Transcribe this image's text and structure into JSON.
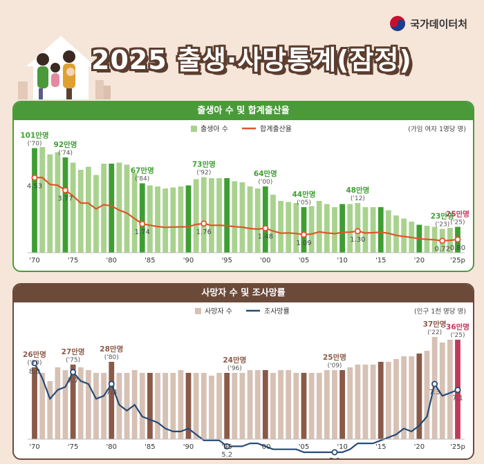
{
  "header": {
    "agency_name": "국가데이터처",
    "title": "2025 출생·사망통계(잠정)"
  },
  "colors": {
    "birth_bar_light": "#a9d28e",
    "birth_bar_dark": "#3f9e33",
    "birth_rate_line": "#e0542a",
    "death_bar_light": "#d6c1b4",
    "death_bar_dark": "#8a5a48",
    "death_bar_highlight": "#c0395a",
    "death_rate_line": "#244a78"
  },
  "chart_data": [
    {
      "type": "bar",
      "title": "출생아 수 및 합계출산율",
      "legend": [
        "출생아 수",
        "합계출산율"
      ],
      "unit_note": "(가임 여자 1명당 명)",
      "x_tick_labels": [
        "'70",
        "'75",
        "'80",
        "'85",
        "'90",
        "'95",
        "'00",
        "'05",
        "'10",
        "'15",
        "'20",
        "'25p"
      ],
      "years": [
        1970,
        1971,
        1972,
        1973,
        1974,
        1975,
        1976,
        1977,
        1978,
        1979,
        1980,
        1981,
        1982,
        1983,
        1984,
        1985,
        1986,
        1987,
        1988,
        1989,
        1990,
        1991,
        1992,
        1993,
        1994,
        1995,
        1996,
        1997,
        1998,
        1999,
        2000,
        2001,
        2002,
        2003,
        2004,
        2005,
        2006,
        2007,
        2008,
        2009,
        2010,
        2011,
        2012,
        2013,
        2014,
        2015,
        2016,
        2017,
        2018,
        2019,
        2020,
        2021,
        2022,
        2023,
        2024,
        2025
      ],
      "births_man": [
        101,
        102,
        95,
        97,
        92,
        87,
        80,
        83,
        75,
        86,
        86,
        87,
        85,
        77,
        67,
        65,
        64,
        62,
        63,
        64,
        65,
        71,
        73,
        72,
        72,
        72,
        69,
        68,
        64,
        62,
        64,
        56,
        50,
        49,
        48,
        44,
        45,
        50,
        47,
        44,
        47,
        47,
        48,
        44,
        44,
        44,
        41,
        36,
        33,
        30,
        27,
        26,
        25,
        23,
        24,
        25
      ],
      "highlight_years": [
        1970,
        1974,
        1980,
        1984,
        1990,
        1995,
        2000,
        2005,
        2010,
        2015,
        2020,
        2025
      ],
      "tfr": [
        4.53,
        4.54,
        4.12,
        4.07,
        3.77,
        3.43,
        3.0,
        2.99,
        2.64,
        2.9,
        2.82,
        2.57,
        2.39,
        2.06,
        1.74,
        1.66,
        1.58,
        1.53,
        1.55,
        1.56,
        1.57,
        1.71,
        1.76,
        1.65,
        1.66,
        1.63,
        1.57,
        1.54,
        1.46,
        1.42,
        1.48,
        1.31,
        1.18,
        1.19,
        1.16,
        1.09,
        1.13,
        1.26,
        1.19,
        1.15,
        1.23,
        1.24,
        1.3,
        1.19,
        1.21,
        1.24,
        1.17,
        1.05,
        0.98,
        0.92,
        0.84,
        0.81,
        0.78,
        0.72,
        0.75,
        0.8
      ],
      "bar_annotations": [
        {
          "year": 1970,
          "value": "101만명",
          "sub": "('70)"
        },
        {
          "year": 1974,
          "value": "92만명",
          "sub": "('74)"
        },
        {
          "year": 1984,
          "value": "67만명",
          "sub": "('84)"
        },
        {
          "year": 1992,
          "value": "73만명",
          "sub": "('92)"
        },
        {
          "year": 2000,
          "value": "64만명",
          "sub": "('00)"
        },
        {
          "year": 2005,
          "value": "44만명",
          "sub": "('05)"
        },
        {
          "year": 2012,
          "value": "48만명",
          "sub": "('12)"
        },
        {
          "year": 2023,
          "value": "23만명",
          "sub": "('23)"
        },
        {
          "year": 2025,
          "value": "25만명",
          "sub": "('25)"
        }
      ],
      "rate_annotations": [
        {
          "year": 1970,
          "label": "4.53"
        },
        {
          "year": 1974,
          "label": "3.77"
        },
        {
          "year": 1984,
          "label": "1.74"
        },
        {
          "year": 1992,
          "label": "1.76"
        },
        {
          "year": 2000,
          "label": "1.48"
        },
        {
          "year": 2005,
          "label": "1.09"
        },
        {
          "year": 2012,
          "label": "1.30"
        },
        {
          "year": 2023,
          "label": "0.72"
        },
        {
          "year": 2025,
          "label": "0.80"
        }
      ]
    },
    {
      "type": "bar",
      "title": "사망자 수 및 조사망률",
      "legend": [
        "사망자 수",
        "조사망률"
      ],
      "unit_note": "(인구 1천 명당 명)",
      "x_tick_labels": [
        "'70",
        "'75",
        "'80",
        "'85",
        "'90",
        "'95",
        "'00",
        "'05",
        "'10",
        "'15",
        "'20",
        "'25p"
      ],
      "years": [
        1970,
        1971,
        1972,
        1973,
        1974,
        1975,
        1976,
        1977,
        1978,
        1979,
        1980,
        1981,
        1982,
        1983,
        1984,
        1985,
        1986,
        1987,
        1988,
        1989,
        1990,
        1991,
        1992,
        1993,
        1994,
        1995,
        1996,
        1997,
        1998,
        1999,
        2000,
        2001,
        2002,
        2003,
        2004,
        2005,
        2006,
        2007,
        2008,
        2009,
        2010,
        2011,
        2012,
        2013,
        2014,
        2015,
        2016,
        2017,
        2018,
        2019,
        2020,
        2021,
        2022,
        2023,
        2024,
        2025
      ],
      "deaths_man": [
        26,
        24,
        21,
        26,
        25,
        27,
        26,
        25,
        24,
        24,
        28,
        24,
        24,
        25,
        24,
        24,
        24,
        24,
        24,
        25,
        24,
        24,
        24,
        23,
        24,
        24,
        24,
        24,
        25,
        25,
        25,
        24,
        25,
        25,
        24,
        24,
        24,
        24,
        25,
        25,
        25,
        26,
        27,
        27,
        27,
        28,
        28,
        29,
        30,
        30,
        31,
        32,
        37,
        35,
        36,
        36
      ],
      "highlight_years": [
        1970,
        1975,
        1980,
        1985,
        1990,
        1995,
        2000,
        2005,
        2010,
        2015,
        2020
      ],
      "cdr": [
        8.0,
        7.5,
        6.8,
        7.1,
        7.2,
        7.7,
        7.4,
        7.3,
        6.8,
        6.9,
        7.3,
        6.6,
        6.4,
        6.6,
        6.2,
        6.1,
        6.0,
        5.8,
        5.7,
        5.7,
        5.8,
        5.6,
        5.4,
        5.4,
        5.4,
        5.2,
        5.2,
        5.2,
        5.3,
        5.3,
        5.2,
        5.1,
        5.1,
        5.1,
        5.1,
        5.0,
        5.0,
        5.0,
        5.0,
        5.0,
        5.0,
        5.1,
        5.3,
        5.3,
        5.3,
        5.4,
        5.5,
        5.6,
        5.8,
        5.7,
        5.9,
        6.2,
        7.3,
        6.9,
        7.0,
        7.1
      ],
      "bar_annotations": [
        {
          "year": 1970,
          "value": "26만명",
          "sub": "('70)"
        },
        {
          "year": 1975,
          "value": "27만명",
          "sub": "('75)"
        },
        {
          "year": 1980,
          "value": "28만명",
          "sub": "('80)"
        },
        {
          "year": 1996,
          "value": "24만명",
          "sub": "('96)"
        },
        {
          "year": 2009,
          "value": "25만명",
          "sub": "('09)"
        },
        {
          "year": 2022,
          "value": "37만명",
          "sub": "('22)"
        },
        {
          "year": 2025,
          "value": "36만명",
          "sub": "('25)"
        }
      ],
      "rate_annotations": [
        {
          "year": 1970,
          "label": "8.0"
        },
        {
          "year": 1975,
          "label": "7.7"
        },
        {
          "year": 1980,
          "label": "7.3"
        },
        {
          "year": 1995,
          "label": "5.2"
        },
        {
          "year": 2009,
          "label": "5.0"
        },
        {
          "year": 2022,
          "label": "7.3"
        },
        {
          "year": 2025,
          "label": "7.1"
        }
      ]
    }
  ]
}
